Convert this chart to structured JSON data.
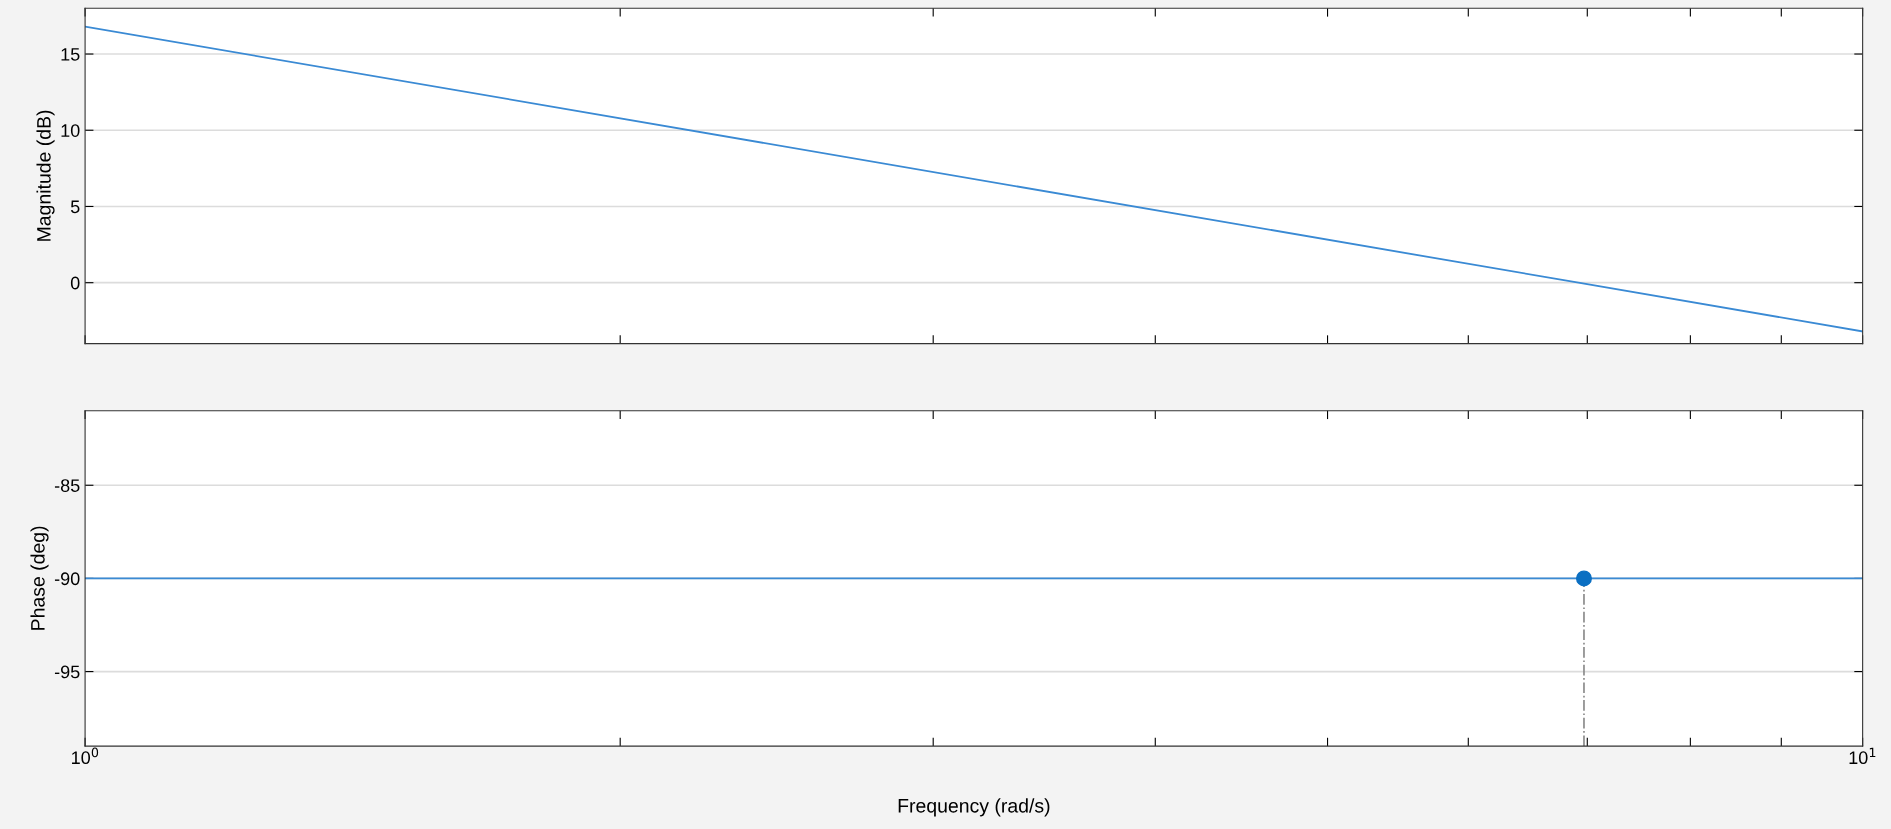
{
  "chart_data": [
    {
      "type": "line",
      "ylabel": "Magnitude (dB)",
      "log": "x",
      "xlim": [
        1,
        10
      ],
      "ylim": [
        -4,
        18
      ],
      "yticks": [
        0,
        5,
        10,
        15
      ],
      "xticks": [
        {
          "value": 1,
          "label": null
        },
        {
          "value": 2,
          "label": null
        },
        {
          "value": 3,
          "label": null
        },
        {
          "value": 4,
          "label": null
        },
        {
          "value": 5,
          "label": null
        },
        {
          "value": 6,
          "label": null
        },
        {
          "value": 7,
          "label": null
        },
        {
          "value": 8,
          "label": null
        },
        {
          "value": 9,
          "label": null
        },
        {
          "value": 10,
          "label": null
        }
      ],
      "grid": "y",
      "tick_labels": "y",
      "marker": "none",
      "line_style": "solid",
      "series": [
        {
          "color": "#3a8ad4",
          "x": [
            1,
            6.92,
            10
          ],
          "values": [
            16.8,
            0,
            -3.2
          ]
        }
      ]
    },
    {
      "type": "line",
      "ylabel": "Phase (deg)",
      "xlabel": "Frequency (rad/s)",
      "log": "x",
      "xlim": [
        1,
        10
      ],
      "ylim": [
        -99,
        -81
      ],
      "yticks": [
        -95,
        -90,
        -85
      ],
      "xticks": [
        {
          "value": 1,
          "label": "10$^{0}$"
        },
        {
          "value": 2,
          "label": null
        },
        {
          "value": 3,
          "label": null
        },
        {
          "value": 4,
          "label": null
        },
        {
          "value": 5,
          "label": null
        },
        {
          "value": 6,
          "label": null
        },
        {
          "value": 7,
          "label": null
        },
        {
          "value": 8,
          "label": null
        },
        {
          "value": 9,
          "label": null
        },
        {
          "value": 10,
          "label": "10$^{1}$"
        }
      ],
      "grid": "y",
      "marker": "none",
      "line_style": "solid",
      "series": [
        {
          "color": "#3a8ad4",
          "x": [
            1,
            10
          ],
          "values": [
            -90,
            -90
          ]
        },
        {
          "type": "scatter",
          "color": "#0b6fc2",
          "x": [
            6.97
          ],
          "values": [
            -90
          ],
          "marker": "circle"
        }
      ],
      "ref_lines": [
        {
          "axis": "x",
          "value": 6.97,
          "color": "#8a8a8a",
          "line_style": "dashdot"
        }
      ]
    }
  ]
}
